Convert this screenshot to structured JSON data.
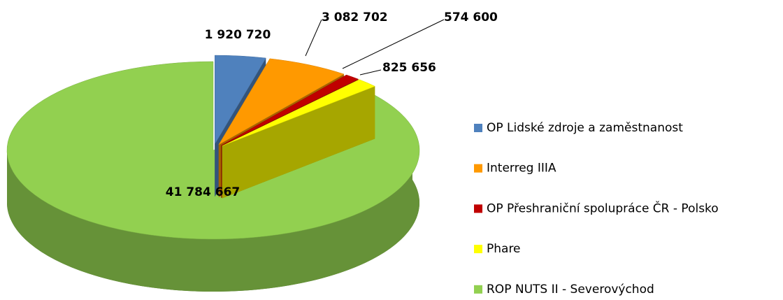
{
  "chart_data": {
    "type": "pie3d",
    "categories": [
      "OP Lidské zdroje a zaměstnanost",
      "Interreg IIIA",
      "OP Přeshraniční spolupráce ČR - Polsko",
      "Phare",
      "ROP NUTS II - Severovýchod"
    ],
    "values": [
      1920720,
      3082702,
      574600,
      825656,
      41784667
    ],
    "value_labels": [
      "1 920 720",
      "3 082 702",
      "574 600",
      "825 656",
      "41 784 667"
    ],
    "colors": [
      "#4f81bd",
      "#ff9900",
      "#c00000",
      "#ffff00",
      "#92d050"
    ],
    "legend": "right"
  }
}
